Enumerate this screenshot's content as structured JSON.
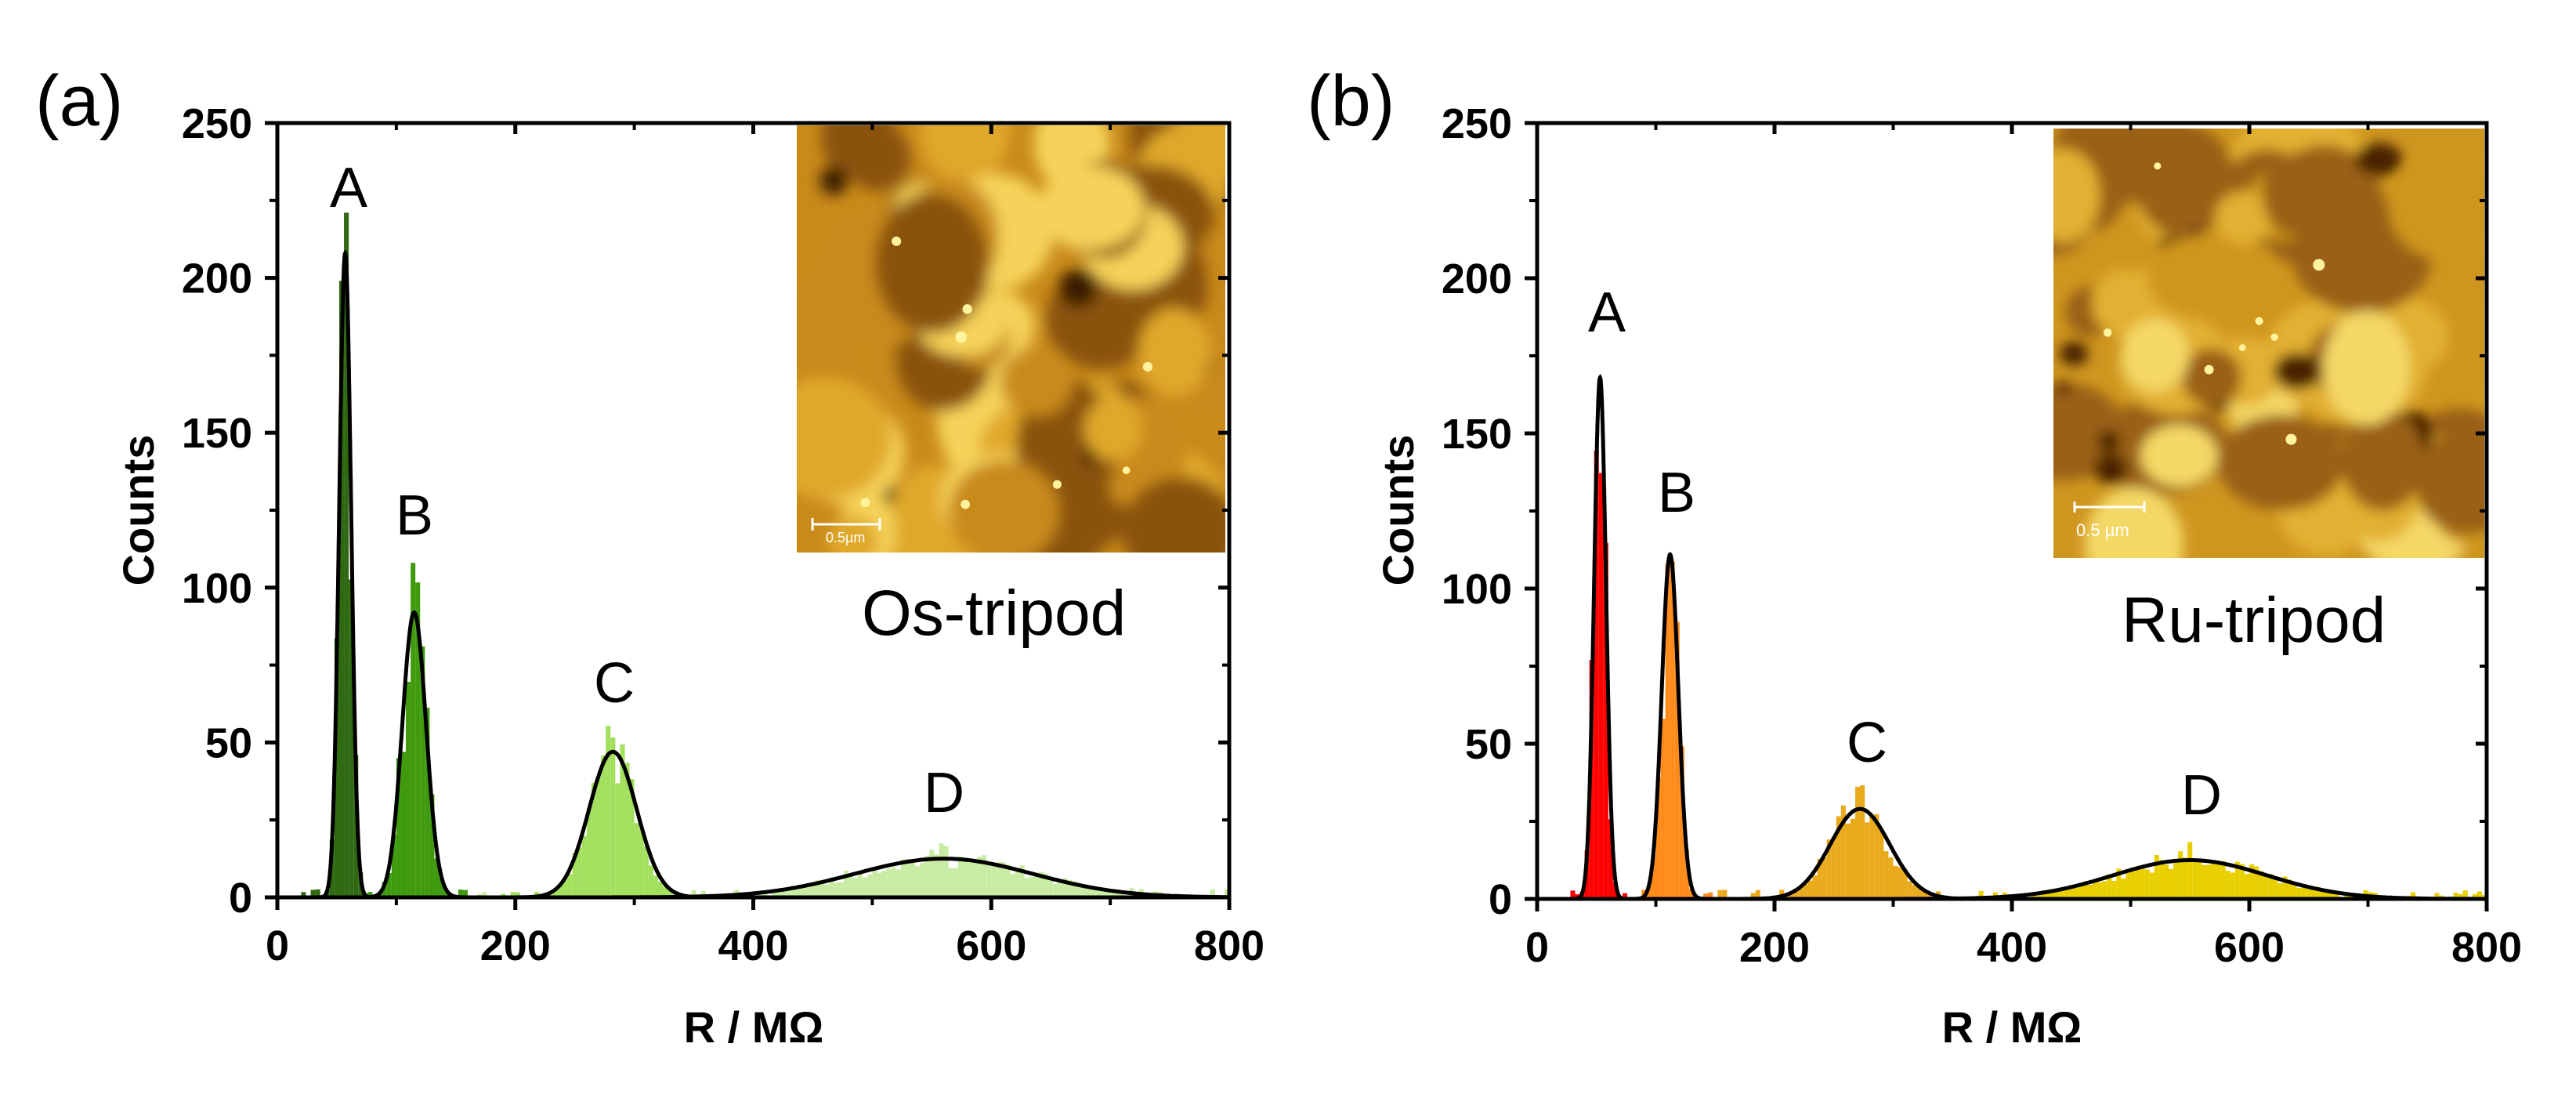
{
  "chart_data": [
    {
      "type": "bar",
      "panel_label": "(a)",
      "sample_label": "Os-tripod",
      "xlabel": "R / MΩ",
      "ylabel": "Counts",
      "xlim": [
        0,
        800
      ],
      "ylim": [
        0,
        250
      ],
      "xticks": [
        "0",
        "200",
        "400",
        "600",
        "800"
      ],
      "yticks": [
        "0",
        "50",
        "100",
        "150",
        "200",
        "250"
      ],
      "bin_width": 4,
      "inset": {
        "scale_bar_label": "0.5µm",
        "palette": [
          "#3b1a02",
          "#8a5210",
          "#c98a1a",
          "#e0a82a",
          "#f5d35a"
        ]
      },
      "components": [
        {
          "label": "A",
          "center": 57,
          "amplitude": 208,
          "sigma": 5,
          "hist_peak": 210,
          "color": "#2f6a12"
        },
        {
          "label": "B",
          "center": 115,
          "amplitude": 92,
          "sigma": 10,
          "hist_peak": 103,
          "color": "#3f9a0e"
        },
        {
          "label": "C",
          "center": 282,
          "amplitude": 47,
          "sigma": 20,
          "hist_peak": 54,
          "color": "#a2e05e"
        },
        {
          "label": "D",
          "center": 560,
          "amplitude": 12.5,
          "sigma": 75,
          "hist_peak": 18,
          "color": "#c9eca4"
        }
      ]
    },
    {
      "type": "bar",
      "panel_label": "(b)",
      "sample_label": "Ru-tripod",
      "xlabel": "R / MΩ",
      "ylabel": "Counts",
      "xlim": [
        0,
        800
      ],
      "ylim": [
        0,
        250
      ],
      "xticks": [
        "0",
        "200",
        "400",
        "600",
        "800"
      ],
      "yticks": [
        "0",
        "50",
        "100",
        "150",
        "200",
        "250"
      ],
      "bin_width": 4,
      "inset": {
        "scale_bar_label": "0.5 µm",
        "palette": [
          "#4a2303",
          "#9a6112",
          "#cf961f",
          "#e2b033",
          "#f4d866"
        ]
      },
      "components": [
        {
          "label": "A",
          "center": 53,
          "amplitude": 168,
          "sigma": 5,
          "hist_peak": 150,
          "color": "#ff0000"
        },
        {
          "label": "B",
          "center": 112,
          "amplitude": 111,
          "sigma": 7,
          "hist_peak": 110,
          "color": "#ff8c1a"
        },
        {
          "label": "C",
          "center": 272,
          "amplitude": 29,
          "sigma": 25,
          "hist_peak": 38,
          "color": "#e9aa1c"
        },
        {
          "label": "D",
          "center": 550,
          "amplitude": 12.5,
          "sigma": 65,
          "hist_peak": 19,
          "color": "#e8cf00"
        }
      ]
    }
  ]
}
